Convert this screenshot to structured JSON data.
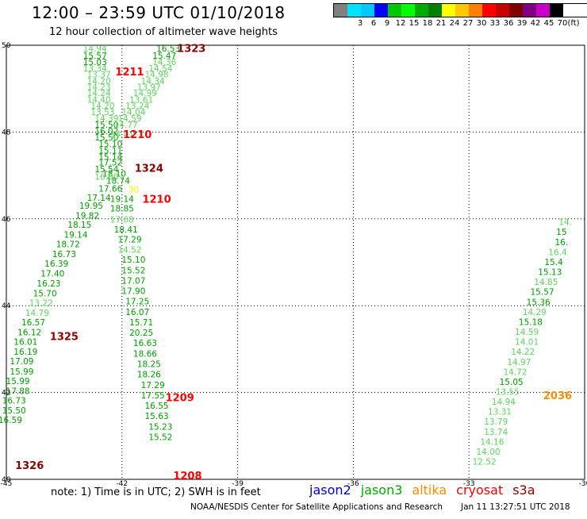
{
  "header": {
    "title": "12:00 – 23:59 UTC 01/10/2018",
    "subtitle": "12 hour collection of altimeter wave heights"
  },
  "legend": {
    "unit_label": "(ft)",
    "bins": [
      {
        "label": "",
        "color": "#808080"
      },
      {
        "label": "3",
        "color": "#00e0ff"
      },
      {
        "label": "6",
        "color": "#00c8ff"
      },
      {
        "label": "9",
        "color": "#0000ff"
      },
      {
        "label": "12",
        "color": "#00c800"
      },
      {
        "label": "15",
        "color": "#00ff00"
      },
      {
        "label": "18",
        "color": "#00aa00"
      },
      {
        "label": "21",
        "color": "#008000"
      },
      {
        "label": "24",
        "color": "#ffff00"
      },
      {
        "label": "27",
        "color": "#ffc800"
      },
      {
        "label": "30",
        "color": "#ff8000"
      },
      {
        "label": "33",
        "color": "#ff0000"
      },
      {
        "label": "36",
        "color": "#c80000"
      },
      {
        "label": "39",
        "color": "#800000"
      },
      {
        "label": "42",
        "color": "#800080"
      },
      {
        "label": "45",
        "color": "#c800c8"
      },
      {
        "label": "70",
        "color": "#000000"
      }
    ]
  },
  "axes": {
    "x_ticks": [
      "-45",
      "-42",
      "-39",
      "-36",
      "-33",
      "-30"
    ],
    "y_ticks": [
      "50",
      "48",
      "46",
      "44",
      "42",
      "40"
    ]
  },
  "colors": {
    "light_green": "#5ed65e",
    "dark_green": "#00a000",
    "yellow": "#ffff00",
    "red_time": "#ff0000",
    "dark_red_time": "#8b0000",
    "orange_time": "#ff8c00"
  },
  "satellites": [
    {
      "name": "jason2",
      "color": "#0000cc"
    },
    {
      "name": "jason3",
      "color": "#00aa00"
    },
    {
      "name": "altika",
      "color": "#ff8c00"
    },
    {
      "name": "cryosat",
      "color": "#ff0000"
    },
    {
      "name": "s3a",
      "color": "#8b0000"
    }
  ],
  "footer": {
    "note": "note:  1) Time is in UTC;  2) SWH is in feet",
    "credit": "NOAA/NESDIS Center for Satellite Applications and Research",
    "generated": "Jan 11 13:27:51 UTC 2018"
  },
  "chart_data": {
    "type": "scatter",
    "xlim": [
      -45,
      -30
    ],
    "ylim": [
      40,
      50
    ],
    "grid": true,
    "passes": [
      {
        "lon": -42.7,
        "lat": 49.93,
        "text": "14.94",
        "kind": "swh",
        "color": "light"
      },
      {
        "lon": -42.7,
        "lat": 49.76,
        "text": "15.57",
        "kind": "swh",
        "color": "dark"
      },
      {
        "lon": -42.7,
        "lat": 49.62,
        "text": "15.03",
        "kind": "swh",
        "color": "dark"
      },
      {
        "lon": -42.7,
        "lat": 49.47,
        "text": "13.34",
        "kind": "swh",
        "color": "light"
      },
      {
        "lon": -42.6,
        "lat": 49.33,
        "text": "13.37",
        "kind": "swh",
        "color": "light"
      },
      {
        "lon": -42.6,
        "lat": 49.18,
        "text": "14.20",
        "kind": "swh",
        "color": "light"
      },
      {
        "lon": -42.6,
        "lat": 49.04,
        "text": "14.23",
        "kind": "swh",
        "color": "light"
      },
      {
        "lon": -42.6,
        "lat": 48.9,
        "text": "14.24",
        "kind": "swh",
        "color": "light"
      },
      {
        "lon": -42.6,
        "lat": 48.75,
        "text": "14.40",
        "kind": "swh",
        "color": "light"
      },
      {
        "lon": -42.5,
        "lat": 48.61,
        "text": "14.20",
        "kind": "swh",
        "color": "light"
      },
      {
        "lon": -42.5,
        "lat": 48.46,
        "text": "13.53",
        "kind": "swh",
        "color": "light"
      },
      {
        "lon": -42.4,
        "lat": 48.32,
        "text": "14.39",
        "kind": "swh",
        "color": "light"
      },
      {
        "lon": -42.4,
        "lat": 48.17,
        "text": "15.50",
        "kind": "swh",
        "color": "dark"
      },
      {
        "lon": -42.4,
        "lat": 48.03,
        "text": "16.02",
        "kind": "swh",
        "color": "dark"
      },
      {
        "lon": -42.4,
        "lat": 47.88,
        "text": "15.50",
        "kind": "swh",
        "color": "dark"
      },
      {
        "lon": -42.3,
        "lat": 47.73,
        "text": "15.10",
        "kind": "swh",
        "color": "dark"
      },
      {
        "lon": -42.3,
        "lat": 47.58,
        "text": "15.11",
        "kind": "swh",
        "color": "dark"
      },
      {
        "lon": -42.3,
        "lat": 47.43,
        "text": "15.14",
        "kind": "swh",
        "color": "dark"
      },
      {
        "lon": -42.3,
        "lat": 47.3,
        "text": "17.52",
        "kind": "swh",
        "color": "dark"
      },
      {
        "lon": -42.4,
        "lat": 47.15,
        "text": "15.54",
        "kind": "swh",
        "color": "dark"
      },
      {
        "lon": -42.2,
        "lat": 47.05,
        "text": "18.10",
        "kind": "swh",
        "color": "dark"
      },
      {
        "lon": -42.4,
        "lat": 46.97,
        "text": "16.00",
        "kind": "swh",
        "color": "light"
      },
      {
        "lon": -42.1,
        "lat": 46.88,
        "text": "18.74",
        "kind": "swh",
        "color": "dark"
      },
      {
        "lon": -42.3,
        "lat": 46.7,
        "text": "17.66",
        "kind": "swh",
        "color": "dark"
      },
      {
        "lon": -41.7,
        "lat": 46.68,
        "text": "30",
        "kind": "swh",
        "color": "yellow"
      },
      {
        "lon": -42.6,
        "lat": 46.49,
        "text": "17.14",
        "kind": "swh",
        "color": "dark"
      },
      {
        "lon": -42.0,
        "lat": 46.46,
        "text": "19.14",
        "kind": "swh",
        "color": "dark"
      },
      {
        "lon": -42.8,
        "lat": 46.31,
        "text": "19.95",
        "kind": "swh",
        "color": "dark"
      },
      {
        "lon": -42.0,
        "lat": 46.24,
        "text": "18.85",
        "kind": "swh",
        "color": "dark"
      },
      {
        "lon": -42.9,
        "lat": 46.08,
        "text": "19.82",
        "kind": "swh",
        "color": "dark"
      },
      {
        "lon": -42.0,
        "lat": 45.99,
        "text": "17.68",
        "kind": "swh",
        "color": "light"
      },
      {
        "lon": -43.1,
        "lat": 45.87,
        "text": "18.15",
        "kind": "swh",
        "color": "dark"
      },
      {
        "lon": -41.9,
        "lat": 45.76,
        "text": "18.41",
        "kind": "swh",
        "color": "dark"
      },
      {
        "lon": -43.2,
        "lat": 45.64,
        "text": "19.14",
        "kind": "swh",
        "color": "dark"
      },
      {
        "lon": -41.8,
        "lat": 45.53,
        "text": "17.29",
        "kind": "swh",
        "color": "dark"
      },
      {
        "lon": -43.4,
        "lat": 45.42,
        "text": "18.72",
        "kind": "swh",
        "color": "dark"
      },
      {
        "lon": -41.8,
        "lat": 45.29,
        "text": "14.52",
        "kind": "swh",
        "color": "light"
      },
      {
        "lon": -43.5,
        "lat": 45.19,
        "text": "16.73",
        "kind": "swh",
        "color": "dark"
      },
      {
        "lon": -41.7,
        "lat": 45.06,
        "text": "15.10",
        "kind": "swh",
        "color": "dark"
      },
      {
        "lon": -43.7,
        "lat": 44.97,
        "text": "16.39",
        "kind": "swh",
        "color": "dark"
      },
      {
        "lon": -41.7,
        "lat": 44.82,
        "text": "15.52",
        "kind": "swh",
        "color": "dark"
      },
      {
        "lon": -43.8,
        "lat": 44.74,
        "text": "17.40",
        "kind": "swh",
        "color": "dark"
      },
      {
        "lon": -41.7,
        "lat": 44.58,
        "text": "17.07",
        "kind": "swh",
        "color": "dark"
      },
      {
        "lon": -43.9,
        "lat": 44.52,
        "text": "16.23",
        "kind": "swh",
        "color": "dark"
      },
      {
        "lon": -41.7,
        "lat": 44.34,
        "text": "17.90",
        "kind": "swh",
        "color": "dark"
      },
      {
        "lon": -44.0,
        "lat": 44.29,
        "text": "15.70",
        "kind": "swh",
        "color": "dark"
      },
      {
        "lon": -41.6,
        "lat": 44.1,
        "text": "17.25",
        "kind": "swh",
        "color": "dark"
      },
      {
        "lon": -44.1,
        "lat": 44.07,
        "text": "13.22",
        "kind": "swh",
        "color": "light"
      },
      {
        "lon": -41.6,
        "lat": 43.86,
        "text": "16.07",
        "kind": "swh",
        "color": "dark"
      },
      {
        "lon": -44.2,
        "lat": 43.84,
        "text": "14.79",
        "kind": "swh",
        "color": "light"
      },
      {
        "lon": -41.5,
        "lat": 43.62,
        "text": "15.71",
        "kind": "swh",
        "color": "dark"
      },
      {
        "lon": -44.3,
        "lat": 43.62,
        "text": "16.57",
        "kind": "swh",
        "color": "dark"
      },
      {
        "lon": -41.5,
        "lat": 43.38,
        "text": "20.25",
        "kind": "swh",
        "color": "dark"
      },
      {
        "lon": -44.4,
        "lat": 43.39,
        "text": "16.12",
        "kind": "swh",
        "color": "dark"
      },
      {
        "lon": -41.4,
        "lat": 43.14,
        "text": "16.63",
        "kind": "swh",
        "color": "dark"
      },
      {
        "lon": -44.5,
        "lat": 43.17,
        "text": "16.01",
        "kind": "swh",
        "color": "dark"
      },
      {
        "lon": -41.4,
        "lat": 42.9,
        "text": "18.66",
        "kind": "swh",
        "color": "dark"
      },
      {
        "lon": -44.5,
        "lat": 42.94,
        "text": "16.19",
        "kind": "swh",
        "color": "dark"
      },
      {
        "lon": -41.3,
        "lat": 42.66,
        "text": "18.25",
        "kind": "swh",
        "color": "dark"
      },
      {
        "lon": -44.6,
        "lat": 42.72,
        "text": "17.09",
        "kind": "swh",
        "color": "dark"
      },
      {
        "lon": -41.3,
        "lat": 42.42,
        "text": "18.26",
        "kind": "swh",
        "color": "dark"
      },
      {
        "lon": -44.6,
        "lat": 42.49,
        "text": "15.99",
        "kind": "swh",
        "color": "dark"
      },
      {
        "lon": -41.2,
        "lat": 42.18,
        "text": "17.29",
        "kind": "swh",
        "color": "dark"
      },
      {
        "lon": -44.7,
        "lat": 42.27,
        "text": "15.99",
        "kind": "swh",
        "color": "dark"
      },
      {
        "lon": -41.2,
        "lat": 41.94,
        "text": "17.55",
        "kind": "swh",
        "color": "dark"
      },
      {
        "lon": -44.7,
        "lat": 42.04,
        "text": "17.88",
        "kind": "swh",
        "color": "dark"
      },
      {
        "lon": -41.1,
        "lat": 41.7,
        "text": "16.55",
        "kind": "swh",
        "color": "dark"
      },
      {
        "lon": -44.8,
        "lat": 41.82,
        "text": "16.73",
        "kind": "swh",
        "color": "dark"
      },
      {
        "lon": -41.1,
        "lat": 41.46,
        "text": "15.63",
        "kind": "swh",
        "color": "dark"
      },
      {
        "lon": -44.8,
        "lat": 41.59,
        "text": "15.50",
        "kind": "swh",
        "color": "dark"
      },
      {
        "lon": -41.0,
        "lat": 41.22,
        "text": "15.23",
        "kind": "swh",
        "color": "dark"
      },
      {
        "lon": -44.9,
        "lat": 41.37,
        "text": "16.59",
        "kind": "swh",
        "color": "dark"
      },
      {
        "lon": -41.0,
        "lat": 40.98,
        "text": "15.52",
        "kind": "swh",
        "color": "dark"
      },
      {
        "lon": -40.8,
        "lat": 49.93,
        "text": "16.53",
        "kind": "swh",
        "color": "dark"
      },
      {
        "lon": -40.9,
        "lat": 49.76,
        "text": "15.47",
        "kind": "swh",
        "color": "dark"
      },
      {
        "lon": -40.9,
        "lat": 49.62,
        "text": "14.36",
        "kind": "swh",
        "color": "light"
      },
      {
        "lon": -41.0,
        "lat": 49.47,
        "text": "14.54",
        "kind": "swh",
        "color": "light"
      },
      {
        "lon": -41.1,
        "lat": 49.33,
        "text": "14.98",
        "kind": "swh",
        "color": "light"
      },
      {
        "lon": -41.2,
        "lat": 49.18,
        "text": "14.34",
        "kind": "swh",
        "color": "light"
      },
      {
        "lon": -41.3,
        "lat": 49.04,
        "text": "13.97",
        "kind": "swh",
        "color": "light"
      },
      {
        "lon": -41.4,
        "lat": 48.9,
        "text": "14.99",
        "kind": "swh",
        "color": "light"
      },
      {
        "lon": -41.5,
        "lat": 48.75,
        "text": "13.61",
        "kind": "swh",
        "color": "light"
      },
      {
        "lon": -41.6,
        "lat": 48.61,
        "text": "13.24",
        "kind": "swh",
        "color": "light"
      },
      {
        "lon": -41.7,
        "lat": 48.46,
        "text": "14.04",
        "kind": "swh",
        "color": "light"
      },
      {
        "lon": -41.8,
        "lat": 48.32,
        "text": "14.59",
        "kind": "swh",
        "color": "light"
      },
      {
        "lon": -41.9,
        "lat": 48.17,
        "text": "14.77",
        "kind": "swh",
        "color": "light"
      },
      {
        "lon": -42.0,
        "lat": 47.95,
        "text": "14.41",
        "kind": "swh",
        "color": "light"
      },
      {
        "lon": -30.5,
        "lat": 45.93,
        "text": "14.",
        "kind": "swh",
        "color": "light"
      },
      {
        "lon": -30.6,
        "lat": 45.7,
        "text": "15",
        "kind": "swh",
        "color": "dark"
      },
      {
        "lon": -30.6,
        "lat": 45.47,
        "text": "16.",
        "kind": "swh",
        "color": "dark"
      },
      {
        "lon": -30.7,
        "lat": 45.24,
        "text": "16.4",
        "kind": "swh",
        "color": "light"
      },
      {
        "lon": -30.8,
        "lat": 45.01,
        "text": "15.4",
        "kind": "swh",
        "color": "dark"
      },
      {
        "lon": -30.9,
        "lat": 44.78,
        "text": "15.13",
        "kind": "swh",
        "color": "dark"
      },
      {
        "lon": -31.0,
        "lat": 44.55,
        "text": "14.85",
        "kind": "swh",
        "color": "light"
      },
      {
        "lon": -31.1,
        "lat": 44.32,
        "text": "15.57",
        "kind": "swh",
        "color": "dark"
      },
      {
        "lon": -31.2,
        "lat": 44.09,
        "text": "15.36",
        "kind": "swh",
        "color": "dark"
      },
      {
        "lon": -31.3,
        "lat": 43.86,
        "text": "14.29",
        "kind": "swh",
        "color": "light"
      },
      {
        "lon": -31.4,
        "lat": 43.63,
        "text": "15.18",
        "kind": "swh",
        "color": "dark"
      },
      {
        "lon": -31.5,
        "lat": 43.4,
        "text": "14.59",
        "kind": "swh",
        "color": "light"
      },
      {
        "lon": -31.5,
        "lat": 43.17,
        "text": "14.01",
        "kind": "swh",
        "color": "light"
      },
      {
        "lon": -31.6,
        "lat": 42.94,
        "text": "14.22",
        "kind": "swh",
        "color": "light"
      },
      {
        "lon": -31.7,
        "lat": 42.71,
        "text": "14.97",
        "kind": "swh",
        "color": "light"
      },
      {
        "lon": -31.8,
        "lat": 42.48,
        "text": "14.72",
        "kind": "swh",
        "color": "light"
      },
      {
        "lon": -31.9,
        "lat": 42.25,
        "text": "15.05",
        "kind": "swh",
        "color": "dark"
      },
      {
        "lon": -32.0,
        "lat": 42.02,
        "text": "13.55",
        "kind": "swh",
        "color": "light"
      },
      {
        "lon": -32.1,
        "lat": 41.79,
        "text": "14.94",
        "kind": "swh",
        "color": "light"
      },
      {
        "lon": -32.2,
        "lat": 41.56,
        "text": "13.31",
        "kind": "swh",
        "color": "light"
      },
      {
        "lon": -32.3,
        "lat": 41.33,
        "text": "13.79",
        "kind": "swh",
        "color": "light"
      },
      {
        "lon": -32.3,
        "lat": 41.1,
        "text": "13.74",
        "kind": "swh",
        "color": "light"
      },
      {
        "lon": -32.4,
        "lat": 40.87,
        "text": "14.16",
        "kind": "swh",
        "color": "light"
      },
      {
        "lon": -32.5,
        "lat": 40.64,
        "text": "14.00",
        "kind": "swh",
        "color": "light"
      },
      {
        "lon": -32.6,
        "lat": 40.41,
        "text": "12.52",
        "kind": "swh",
        "color": "light"
      },
      {
        "lon": -40.2,
        "lat": 49.92,
        "text": "1323",
        "kind": "time",
        "color": "darkred"
      },
      {
        "lon": -41.8,
        "lat": 49.38,
        "text": "1211",
        "kind": "time",
        "color": "red"
      },
      {
        "lon": -41.6,
        "lat": 47.93,
        "text": "1210",
        "kind": "time",
        "color": "red"
      },
      {
        "lon": -41.3,
        "lat": 47.16,
        "text": "1324",
        "kind": "time",
        "color": "darkred"
      },
      {
        "lon": -41.1,
        "lat": 46.44,
        "text": "1210",
        "kind": "time",
        "color": "red"
      },
      {
        "lon": -43.5,
        "lat": 43.28,
        "text": "1325",
        "kind": "time",
        "color": "darkred"
      },
      {
        "lon": -40.5,
        "lat": 41.87,
        "text": "1209",
        "kind": "time",
        "color": "red"
      },
      {
        "lon": -40.3,
        "lat": 40.07,
        "text": "1208",
        "kind": "time",
        "color": "red"
      },
      {
        "lon": -44.4,
        "lat": 40.31,
        "text": "1326",
        "kind": "time",
        "color": "darkred"
      },
      {
        "lon": -30.7,
        "lat": 41.92,
        "text": "2036",
        "kind": "time",
        "color": "orange"
      }
    ]
  }
}
